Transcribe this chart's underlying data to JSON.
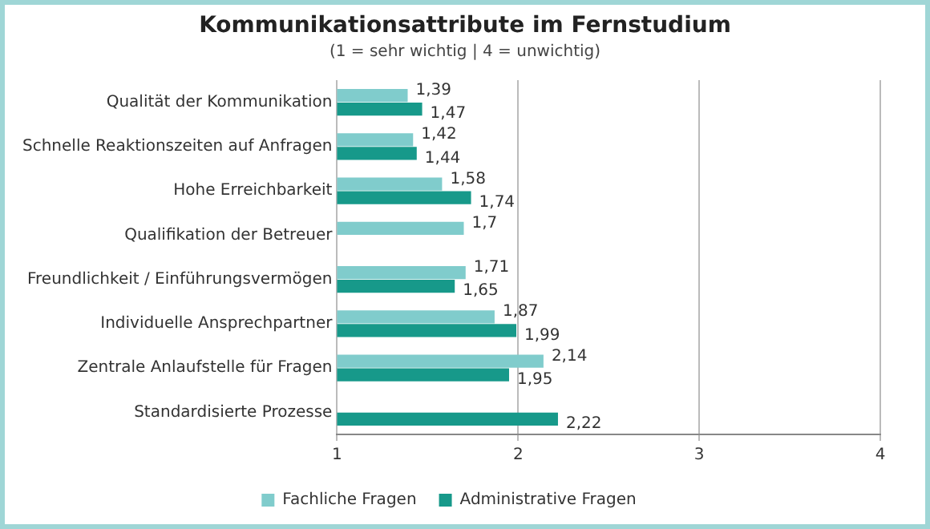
{
  "chart_data": {
    "type": "bar",
    "orientation": "horizontal",
    "title": "Kommunikationsattribute im Fernstudium",
    "subtitle": "(1 = sehr wichtig | 4 = unwichtig)",
    "categories": [
      "Qualität der Kommunikation",
      "Schnelle Reaktionszeiten auf Anfragen",
      "Hohe Erreichbarkeit",
      "Qualifikation der Betreuer",
      "Freundlichkeit / Einführungsvermögen",
      "Individuelle Ansprechpartner",
      "Zentrale Anlaufstelle für Fragen",
      "Standardisierte Prozesse"
    ],
    "series": [
      {
        "name": "Fachliche Fragen",
        "color": "#80cccc",
        "values": [
          1.39,
          1.42,
          1.58,
          1.7,
          1.71,
          1.87,
          2.14,
          null
        ],
        "value_labels": [
          "1,39",
          "1,42",
          "1,58",
          "1,7",
          "1,71",
          "1,87",
          "2,14",
          null
        ]
      },
      {
        "name": "Administrative Fragen",
        "color": "#17998a",
        "values": [
          1.47,
          1.44,
          1.74,
          null,
          1.65,
          1.99,
          1.95,
          2.22
        ],
        "value_labels": [
          "1,47",
          "1,44",
          "1,74",
          null,
          "1,65",
          "1,99",
          "1,95",
          "2,22"
        ]
      }
    ],
    "xlim": [
      1,
      4
    ],
    "xticks": [
      1,
      2,
      3,
      4
    ],
    "grid": "x",
    "legend": "bottom"
  }
}
